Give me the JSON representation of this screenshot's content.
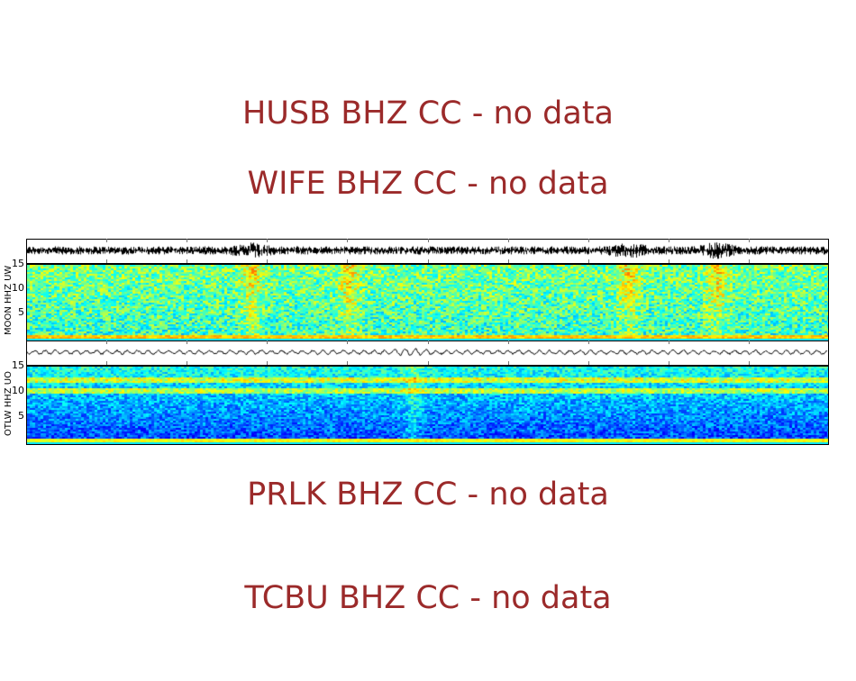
{
  "messages": {
    "husb": "HUSB BHZ CC - no data",
    "wife": "WIFE BHZ CC - no data",
    "prlk": "PRLK BHZ CC - no data",
    "tcbu": "TCBU BHZ CC - no data"
  },
  "colors": {
    "nodata_text": "#9b2a2a",
    "frame": "#000000",
    "trace": "#000000",
    "tick": "#777777"
  },
  "chart_data": [
    {
      "type": "heatmap",
      "title": "MOON HHZ UW",
      "ylabel": "MOON HHZ UW",
      "yticks": [
        "5",
        "10",
        "15"
      ],
      "ylim": [
        0,
        16
      ],
      "xticks_count": 9,
      "colormap": "jet",
      "description": "Seismic waveform trace above spectrogram; broadband energy mostly cyan/green, strong yellow band at lowest frequency, brighter vertical bands near x≈280, 690, 790",
      "waveform": {
        "amplitude": 0.35,
        "bursts": [
          0.28,
          0.75,
          0.86
        ]
      },
      "spectrogram": {
        "base_level": 0.42,
        "bottom_band": 0.68,
        "burst_columns": [
          0.28,
          0.4,
          0.75,
          0.86
        ]
      }
    },
    {
      "type": "heatmap",
      "title": "OTLW HHZ UO",
      "ylabel": "OTLW HHZ UO",
      "yticks": [
        "5",
        "10",
        "15"
      ],
      "ylim": [
        0,
        16
      ],
      "xticks_count": 9,
      "colormap": "jet",
      "description": "Smooth waveform trace above spectrogram; low frequencies dark blue, horizontal bands near 13 and 11 Hz, yellow band at bottom, event near x≈0.48",
      "waveform": {
        "amplitude": 0.2,
        "bursts": [
          0.48
        ]
      },
      "spectrogram": {
        "base_level": 0.22,
        "bottom_band": 0.62,
        "bands_hz": [
          13.5,
          11.2
        ],
        "burst_columns": [
          0.48
        ]
      }
    }
  ],
  "panels": [
    {
      "label": "MOON HHZ UW",
      "yticks": [
        "15",
        "10",
        "5"
      ]
    },
    {
      "label": "OTLW HHZ UO",
      "yticks": [
        "15",
        "10",
        "5"
      ]
    }
  ]
}
